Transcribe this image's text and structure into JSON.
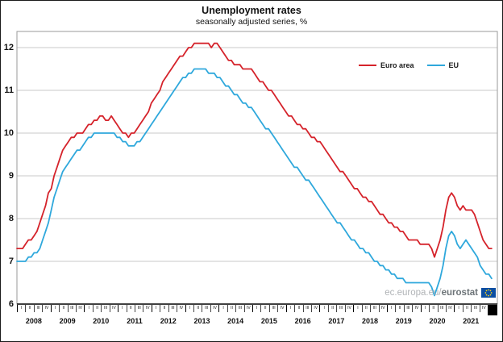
{
  "watermark": {
    "prefix": "ec.europa.eu/",
    "name": "eurostat"
  },
  "flag": {
    "background": "#0b4ea2",
    "stars": "#ffd617"
  },
  "chart_data": {
    "type": "line",
    "title": "Unemployment rates",
    "subtitle": "seasonally adjusted series, %",
    "x_unit": "month",
    "x_start": "2008-01",
    "x_end": "2021-11",
    "years": [
      "2008",
      "2009",
      "2010",
      "2011",
      "2012",
      "2013",
      "2014",
      "2015",
      "2016",
      "2017",
      "2018",
      "2019",
      "2020",
      "2021"
    ],
    "quarter_labels": [
      "I",
      "II",
      "III",
      "IV"
    ],
    "ylim": [
      6,
      12
    ],
    "yticks": [
      6,
      7,
      8,
      9,
      10,
      11,
      12
    ],
    "grid": "horizontal-only",
    "legend_position": "inside-top-right",
    "series": [
      {
        "name": "Euro area",
        "color": "#d5232b",
        "values": [
          7.3,
          7.3,
          7.3,
          7.4,
          7.5,
          7.5,
          7.6,
          7.7,
          7.9,
          8.1,
          8.3,
          8.6,
          8.7,
          9.0,
          9.2,
          9.4,
          9.6,
          9.7,
          9.8,
          9.9,
          9.9,
          10.0,
          10.0,
          10.0,
          10.1,
          10.2,
          10.2,
          10.3,
          10.3,
          10.4,
          10.4,
          10.3,
          10.3,
          10.4,
          10.3,
          10.2,
          10.1,
          10.0,
          10.0,
          9.9,
          10.0,
          10.0,
          10.1,
          10.2,
          10.3,
          10.4,
          10.5,
          10.7,
          10.8,
          10.9,
          11.0,
          11.2,
          11.3,
          11.4,
          11.5,
          11.6,
          11.7,
          11.8,
          11.8,
          11.9,
          12.0,
          12.0,
          12.1,
          12.1,
          12.1,
          12.1,
          12.1,
          12.1,
          12.0,
          12.1,
          12.1,
          12.0,
          11.9,
          11.8,
          11.7,
          11.7,
          11.6,
          11.6,
          11.6,
          11.5,
          11.5,
          11.5,
          11.5,
          11.4,
          11.3,
          11.2,
          11.2,
          11.1,
          11.0,
          11.0,
          10.9,
          10.8,
          10.7,
          10.6,
          10.5,
          10.4,
          10.4,
          10.3,
          10.2,
          10.2,
          10.1,
          10.1,
          10.0,
          9.9,
          9.9,
          9.8,
          9.8,
          9.7,
          9.6,
          9.5,
          9.4,
          9.3,
          9.2,
          9.1,
          9.1,
          9.0,
          8.9,
          8.8,
          8.7,
          8.7,
          8.6,
          8.5,
          8.5,
          8.4,
          8.4,
          8.3,
          8.2,
          8.1,
          8.1,
          8.0,
          7.9,
          7.9,
          7.8,
          7.8,
          7.7,
          7.7,
          7.6,
          7.5,
          7.5,
          7.5,
          7.5,
          7.4,
          7.4,
          7.4,
          7.4,
          7.3,
          7.1,
          7.3,
          7.5,
          7.8,
          8.2,
          8.5,
          8.6,
          8.5,
          8.3,
          8.2,
          8.3,
          8.2,
          8.2,
          8.2,
          8.1,
          7.9,
          7.7,
          7.5,
          7.4,
          7.3,
          7.3
        ]
      },
      {
        "name": "EU",
        "color": "#2fa8dc",
        "values": [
          7.0,
          7.0,
          7.0,
          7.0,
          7.1,
          7.1,
          7.2,
          7.2,
          7.3,
          7.5,
          7.7,
          7.9,
          8.2,
          8.5,
          8.7,
          8.9,
          9.1,
          9.2,
          9.3,
          9.4,
          9.5,
          9.6,
          9.6,
          9.7,
          9.8,
          9.9,
          9.9,
          10.0,
          10.0,
          10.0,
          10.0,
          10.0,
          10.0,
          10.0,
          10.0,
          9.9,
          9.9,
          9.8,
          9.8,
          9.7,
          9.7,
          9.7,
          9.8,
          9.8,
          9.9,
          10.0,
          10.1,
          10.2,
          10.3,
          10.4,
          10.5,
          10.6,
          10.7,
          10.8,
          10.9,
          11.0,
          11.1,
          11.2,
          11.3,
          11.3,
          11.4,
          11.4,
          11.5,
          11.5,
          11.5,
          11.5,
          11.5,
          11.4,
          11.4,
          11.4,
          11.3,
          11.3,
          11.2,
          11.1,
          11.1,
          11.0,
          10.9,
          10.9,
          10.8,
          10.7,
          10.7,
          10.6,
          10.6,
          10.5,
          10.4,
          10.3,
          10.2,
          10.1,
          10.1,
          10.0,
          9.9,
          9.8,
          9.7,
          9.6,
          9.5,
          9.4,
          9.3,
          9.2,
          9.2,
          9.1,
          9.0,
          8.9,
          8.9,
          8.8,
          8.7,
          8.6,
          8.5,
          8.4,
          8.3,
          8.2,
          8.1,
          8.0,
          7.9,
          7.9,
          7.8,
          7.7,
          7.6,
          7.5,
          7.5,
          7.4,
          7.3,
          7.3,
          7.2,
          7.2,
          7.1,
          7.0,
          7.0,
          6.9,
          6.9,
          6.8,
          6.8,
          6.7,
          6.7,
          6.6,
          6.6,
          6.6,
          6.5,
          6.5,
          6.5,
          6.5,
          6.5,
          6.5,
          6.5,
          6.5,
          6.5,
          6.4,
          6.2,
          6.4,
          6.6,
          6.9,
          7.3,
          7.6,
          7.7,
          7.6,
          7.4,
          7.3,
          7.4,
          7.5,
          7.4,
          7.3,
          7.2,
          7.1,
          6.9,
          6.8,
          6.7,
          6.7,
          6.6
        ]
      }
    ]
  }
}
